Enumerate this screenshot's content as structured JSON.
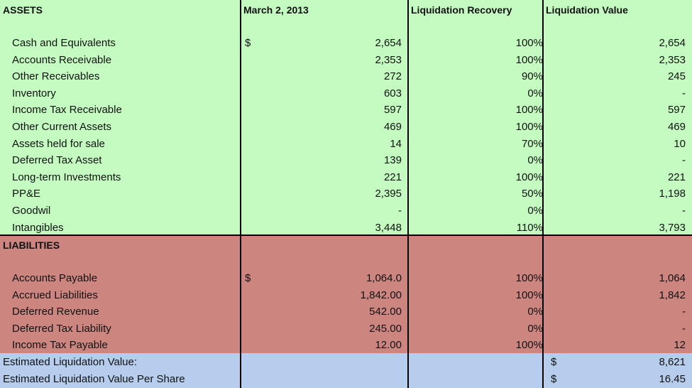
{
  "headers": {
    "assets": "ASSETS",
    "date": "March 2, 2013",
    "recovery": "Liquidation Recovery",
    "value": "Liquidation Value"
  },
  "assets": [
    {
      "label": "Cash and Equivalents",
      "amount": "2,654",
      "recovery": "100%",
      "value": "2,654",
      "currency": "$"
    },
    {
      "label": "Accounts Receivable",
      "amount": "2,353",
      "recovery": "100%",
      "value": "2,353"
    },
    {
      "label": "Other Receivables",
      "amount": "272",
      "recovery": "90%",
      "value": "245"
    },
    {
      "label": "Inventory",
      "amount": "603",
      "recovery": "0%",
      "value": "-"
    },
    {
      "label": "Income Tax Receivable",
      "amount": "597",
      "recovery": "100%",
      "value": "597"
    },
    {
      "label": "Other Current Assets",
      "amount": "469",
      "recovery": "100%",
      "value": "469"
    },
    {
      "label": "Assets held for sale",
      "amount": "14",
      "recovery": "70%",
      "value": "10"
    },
    {
      "label": "Deferred Tax Asset",
      "amount": "139",
      "recovery": "0%",
      "value": "-"
    },
    {
      "label": "Long-term Investments",
      "amount": "221",
      "recovery": "100%",
      "value": "221"
    },
    {
      "label": "PP&E",
      "amount": "2,395",
      "recovery": "50%",
      "value": "1,198"
    },
    {
      "label": "Goodwil",
      "amount": "-",
      "recovery": "0%",
      "value": "-"
    },
    {
      "label": "Intangibles",
      "amount": "3,448",
      "recovery": "110%",
      "value": "3,793"
    }
  ],
  "liabilities_header": "LIABILITIES",
  "liabilities": [
    {
      "label": "Accounts Payable",
      "amount": "1,064.0",
      "recovery": "100%",
      "value": "1,064",
      "currency": "$"
    },
    {
      "label": "Accrued Liabilities",
      "amount": "1,842.00",
      "recovery": "100%",
      "value": "1,842"
    },
    {
      "label": "Deferred Revenue",
      "amount": "542.00",
      "recovery": "0%",
      "value": "-"
    },
    {
      "label": "Deferred Tax Liability",
      "amount": "245.00",
      "recovery": "0%",
      "value": "-"
    },
    {
      "label": "Income Tax Payable",
      "amount": "12.00",
      "recovery": "100%",
      "value": "12"
    }
  ],
  "totals": [
    {
      "label": "Estimated Liquidation Value:",
      "currency": "$",
      "value": "8,621"
    },
    {
      "label": "Estimated Liquidation Value Per Share",
      "currency": "$",
      "value": "16.45"
    }
  ],
  "colors": {
    "assets_fill": "#c4fbc0",
    "liabilities_fill": "#cd8580",
    "totals_fill": "#b6cdee"
  }
}
